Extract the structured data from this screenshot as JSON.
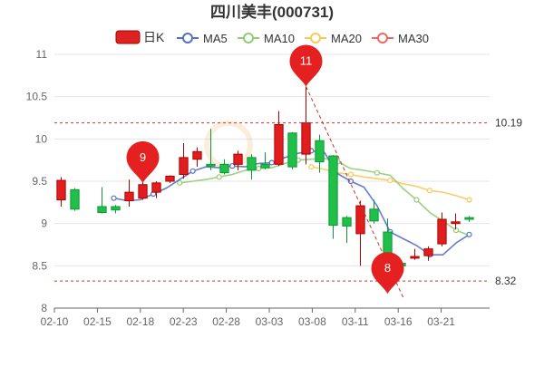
{
  "chart_data": {
    "type": "candlestick",
    "title": "四川美丰(000731)",
    "legend": {
      "position": "top",
      "items": [
        {
          "key": "kline",
          "label": "日K",
          "color": "#dd2222"
        },
        {
          "key": "ma5",
          "label": "MA5",
          "color": "#5470c6"
        },
        {
          "key": "ma10",
          "label": "MA10",
          "color": "#91cc75"
        },
        {
          "key": "ma20",
          "label": "MA20",
          "color": "#fac858"
        },
        {
          "key": "ma30",
          "label": "MA30",
          "color": "#ee6666"
        }
      ]
    },
    "ylim": [
      8,
      11
    ],
    "yticks": [
      "8",
      "8.5",
      "9",
      "9.5",
      "10",
      "10.5",
      "11"
    ],
    "xtick_labels": [
      {
        "index": 0,
        "label": "02-10"
      },
      {
        "index": 4,
        "label": "02-15"
      },
      {
        "index": 8,
        "label": "02-18"
      },
      {
        "index": 12,
        "label": "02-23"
      },
      {
        "index": 16,
        "label": "02-28"
      },
      {
        "index": 20,
        "label": "03-03"
      },
      {
        "index": 24,
        "label": "03-08"
      },
      {
        "index": 28,
        "label": "03-11"
      },
      {
        "index": 32,
        "label": "03-16"
      },
      {
        "index": 36,
        "label": "03-21"
      }
    ],
    "candles": [
      {
        "o": 9.28,
        "c": 9.51,
        "h": 9.55,
        "l": 9.2
      },
      {
        "o": 9.4,
        "c": 9.17,
        "h": 9.42,
        "l": 9.15
      },
      {
        "o": 9.2,
        "c": 9.13,
        "h": 9.43,
        "l": 9.12
      },
      {
        "o": 9.2,
        "c": 9.16,
        "h": 9.22,
        "l": 9.12
      },
      {
        "o": 9.27,
        "c": 9.37,
        "h": 9.52,
        "l": 9.2
      },
      {
        "o": 9.3,
        "c": 9.46,
        "h": 9.55,
        "l": 9.28
      },
      {
        "o": 9.37,
        "c": 9.48,
        "h": 9.5,
        "l": 9.3
      },
      {
        "o": 9.5,
        "c": 9.56,
        "h": 9.57,
        "l": 9.48
      },
      {
        "o": 9.58,
        "c": 9.78,
        "h": 9.95,
        "l": 9.53
      },
      {
        "o": 9.76,
        "c": 9.85,
        "h": 9.9,
        "l": 9.67
      },
      {
        "o": 9.7,
        "c": 9.68,
        "h": 10.12,
        "l": 9.63
      },
      {
        "o": 9.7,
        "c": 9.6,
        "h": 9.76,
        "l": 9.58
      },
      {
        "o": 9.7,
        "c": 9.82,
        "h": 9.86,
        "l": 9.63
      },
      {
        "o": 9.78,
        "c": 9.63,
        "h": 9.82,
        "l": 9.52
      },
      {
        "o": 9.7,
        "c": 9.66,
        "h": 9.84,
        "l": 9.64
      },
      {
        "o": 9.7,
        "c": 10.17,
        "h": 10.33,
        "l": 9.68
      },
      {
        "o": 10.07,
        "c": 9.67,
        "h": 10.08,
        "l": 9.64
      },
      {
        "o": 9.82,
        "c": 10.19,
        "h": 10.62,
        "l": 9.7
      },
      {
        "o": 9.98,
        "c": 9.73,
        "h": 10.05,
        "l": 9.6
      },
      {
        "o": 9.8,
        "c": 8.98,
        "h": 9.81,
        "l": 8.82
      },
      {
        "o": 9.07,
        "c": 8.97,
        "h": 9.09,
        "l": 8.77
      },
      {
        "o": 8.88,
        "c": 9.21,
        "h": 9.27,
        "l": 8.5
      },
      {
        "o": 9.17,
        "c": 9.03,
        "h": 9.28,
        "l": 9.0
      },
      {
        "o": 8.9,
        "c": 8.32,
        "h": 9.06,
        "l": 8.32
      },
      {
        "o": 8.53,
        "c": 8.5,
        "h": 8.55,
        "l": 8.42
      },
      {
        "o": 8.59,
        "c": 8.61,
        "h": 8.7,
        "l": 8.57
      },
      {
        "o": 8.62,
        "c": 8.7,
        "h": 8.73,
        "l": 8.56
      },
      {
        "o": 8.76,
        "c": 9.05,
        "h": 9.13,
        "l": 8.73
      },
      {
        "o": 9.0,
        "c": 9.02,
        "h": 9.12,
        "l": 8.93
      },
      {
        "o": 9.07,
        "c": 9.05,
        "h": 9.09,
        "l": 9.02
      }
    ],
    "candle_xpos": [
      0,
      1,
      3,
      4,
      5,
      6,
      7,
      8,
      9,
      10,
      11,
      12,
      13,
      14,
      15,
      16,
      17,
      18,
      19,
      20,
      21,
      22,
      23,
      24,
      25,
      26,
      27,
      28,
      29,
      30
    ],
    "ma5": [
      null,
      null,
      null,
      null,
      9.3,
      9.27,
      9.28,
      9.35,
      9.42,
      9.52,
      9.62,
      9.67,
      9.66,
      9.68,
      9.67,
      9.71,
      9.72,
      9.78,
      9.83,
      9.86,
      9.84,
      9.59,
      9.5,
      9.43,
      9.21,
      8.9,
      8.82,
      8.74,
      8.63,
      8.63,
      8.77,
      8.87
    ],
    "ma10": [
      null,
      null,
      null,
      null,
      null,
      null,
      null,
      null,
      null,
      9.48,
      9.5,
      9.52,
      9.55,
      9.58,
      9.63,
      9.65,
      9.66,
      9.71,
      9.75,
      9.76,
      9.77,
      9.73,
      9.65,
      9.63,
      9.6,
      9.57,
      9.41,
      9.28,
      9.13,
      9.03,
      8.92,
      8.86
    ],
    "ma20": [
      null,
      null,
      null,
      null,
      null,
      null,
      null,
      null,
      null,
      null,
      null,
      null,
      null,
      null,
      null,
      null,
      null,
      null,
      null,
      9.67,
      9.64,
      9.6,
      9.58,
      9.55,
      9.53,
      9.51,
      9.47,
      9.44,
      9.39,
      9.37,
      9.33,
      9.28
    ],
    "ma_xpos": [
      0,
      1,
      2,
      3,
      4,
      5,
      6,
      7,
      8,
      9,
      10,
      11,
      12,
      13,
      14,
      15,
      16,
      17,
      18,
      19,
      20,
      21,
      22,
      23,
      24,
      25,
      26,
      27,
      28,
      29,
      30,
      31
    ],
    "max_marker": {
      "label": "11",
      "value": 10.62,
      "pos": 18
    },
    "min_marker": {
      "label": "8",
      "value": 8.32,
      "pos": 26
    },
    "pin_marker": {
      "label": "9",
      "value": 9.48,
      "pos": 6
    },
    "ref_lines": [
      {
        "value": 10.19,
        "label": "10.19"
      },
      {
        "value": 8.32,
        "label": "8.32"
      }
    ]
  }
}
